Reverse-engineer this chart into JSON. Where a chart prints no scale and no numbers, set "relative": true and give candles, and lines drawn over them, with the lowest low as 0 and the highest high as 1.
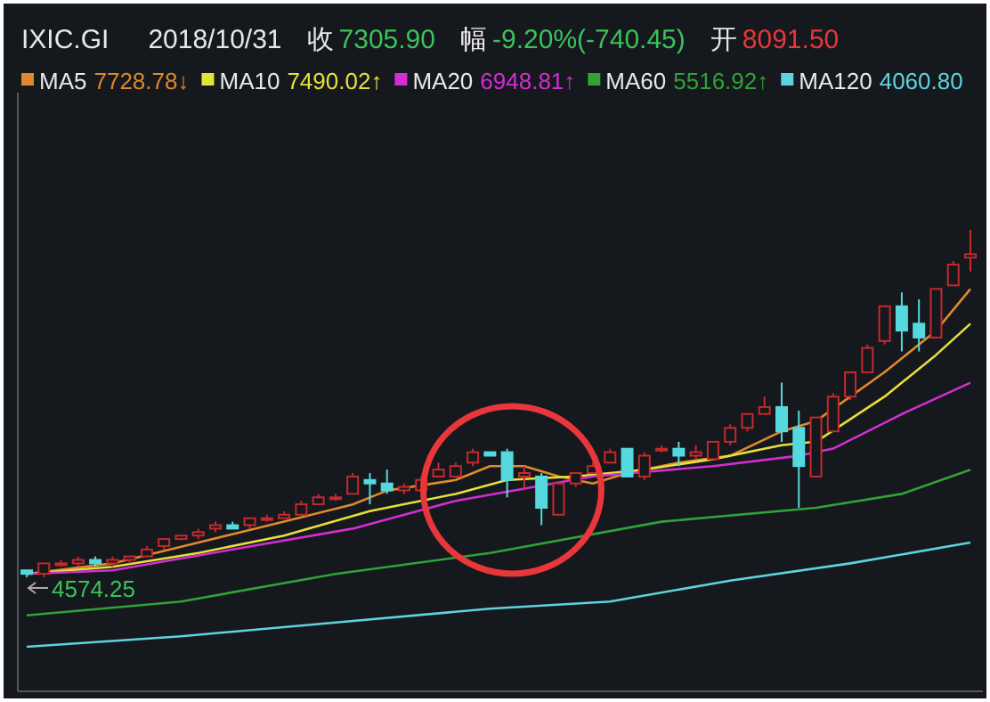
{
  "chart_data": {
    "type": "candlestick",
    "title": "IXIC.GI",
    "subtitle": "2018/10/31",
    "relative": true,
    "legend": "top left",
    "categories": [
      null,
      null,
      null,
      null,
      null,
      null,
      null,
      null,
      null,
      null,
      null,
      null,
      null,
      null,
      null,
      null,
      null,
      null,
      null,
      null,
      null,
      null,
      null,
      null,
      null,
      null,
      null,
      null,
      null,
      null,
      null,
      null,
      null,
      null,
      null,
      null,
      null,
      null,
      null,
      null,
      null,
      null,
      null,
      null,
      null,
      null,
      null,
      null,
      null,
      null,
      null,
      null,
      null,
      null,
      null,
      null
    ],
    "ohlc": [
      [
        0.02,
        0.02,
        0,
        0.01
      ],
      [
        0.01,
        0.04,
        0,
        0.04
      ],
      [
        0.04,
        0.05,
        0.03,
        0.04
      ],
      [
        0.04,
        0.06,
        0.03,
        0.05
      ],
      [
        0.05,
        0.06,
        0.03,
        0.04
      ],
      [
        0.04,
        0.06,
        0.03,
        0.05
      ],
      [
        0.05,
        0.06,
        0.04,
        0.06
      ],
      [
        0.06,
        0.09,
        0.06,
        0.08
      ],
      [
        0.09,
        0.11,
        0.08,
        0.11
      ],
      [
        0.11,
        0.12,
        0.11,
        0.12
      ],
      [
        0.12,
        0.14,
        0.11,
        0.13
      ],
      [
        0.14,
        0.16,
        0.13,
        0.15
      ],
      [
        0.15,
        0.16,
        0.14,
        0.14
      ],
      [
        0.15,
        0.17,
        0.14,
        0.17
      ],
      [
        0.17,
        0.18,
        0.16,
        0.17
      ],
      [
        0.17,
        0.19,
        0.17,
        0.18
      ],
      [
        0.18,
        0.22,
        0.18,
        0.21
      ],
      [
        0.21,
        0.24,
        0.21,
        0.23
      ],
      [
        0.23,
        0.24,
        0.22,
        0.23
      ],
      [
        0.24,
        0.3,
        0.24,
        0.29
      ],
      [
        0.28,
        0.3,
        0.21,
        0.27
      ],
      [
        0.27,
        0.31,
        0.24,
        0.25
      ],
      [
        0.25,
        0.27,
        0.24,
        0.26
      ],
      [
        0.25,
        0.29,
        0.25,
        0.28
      ],
      [
        0.29,
        0.33,
        0.29,
        0.31
      ],
      [
        0.29,
        0.33,
        0.29,
        0.32
      ],
      [
        0.33,
        0.37,
        0.32,
        0.36
      ],
      [
        0.36,
        0.36,
        0.35,
        0.35
      ],
      [
        0.36,
        0.37,
        0.23,
        0.28
      ],
      [
        0.29,
        0.32,
        0.25,
        0.3
      ],
      [
        0.29,
        0.3,
        0.15,
        0.2
      ],
      [
        0.18,
        0.27,
        0.18,
        0.27
      ],
      [
        0.27,
        0.3,
        0.26,
        0.3
      ],
      [
        0.3,
        0.33,
        0.3,
        0.32
      ],
      [
        0.33,
        0.37,
        0.33,
        0.36
      ],
      [
        0.37,
        0.37,
        0.29,
        0.29
      ],
      [
        0.29,
        0.36,
        0.28,
        0.35
      ],
      [
        0.37,
        0.38,
        0.36,
        0.37
      ],
      [
        0.37,
        0.39,
        0.32,
        0.35
      ],
      [
        0.35,
        0.38,
        0.34,
        0.36
      ],
      [
        0.34,
        0.39,
        0.34,
        0.39
      ],
      [
        0.39,
        0.44,
        0.38,
        0.43
      ],
      [
        0.43,
        0.47,
        0.42,
        0.47
      ],
      [
        0.47,
        0.52,
        0.47,
        0.49
      ],
      [
        0.49,
        0.56,
        0.39,
        0.42
      ],
      [
        0.43,
        0.48,
        0.2,
        0.32
      ],
      [
        0.29,
        0.46,
        0.29,
        0.46
      ],
      [
        0.42,
        0.53,
        0.42,
        0.52
      ],
      [
        0.52,
        0.59,
        0.51,
        0.59
      ],
      [
        0.59,
        0.67,
        0.59,
        0.66
      ],
      [
        0.68,
        0.78,
        0.67,
        0.78
      ],
      [
        0.78,
        0.82,
        0.65,
        0.71
      ],
      [
        0.73,
        0.8,
        0.65,
        0.69
      ],
      [
        0.69,
        0.83,
        0.69,
        0.83
      ],
      [
        0.84,
        0.91,
        0.84,
        0.9
      ],
      [
        0.92,
        1.0,
        0.88,
        0.93
      ]
    ],
    "series": [
      {
        "name": "MA5",
        "type": "line",
        "color": "#e0892c",
        "values": [
          0.01,
          null,
          null,
          null,
          null,
          0.04,
          null,
          null,
          null,
          null,
          0.1,
          null,
          null,
          null,
          null,
          0.16,
          null,
          null,
          null,
          0.21,
          null,
          0.25,
          null,
          null,
          null,
          0.28,
          null,
          0.32,
          null,
          0.32,
          null,
          0.29,
          null,
          0.27,
          null,
          0.3,
          null,
          null,
          0.33,
          null,
          null,
          0.35,
          null,
          null,
          0.42,
          null,
          0.45,
          null,
          null,
          null,
          0.59,
          null,
          null,
          0.71,
          null,
          0.83
        ]
      },
      {
        "name": "MA10",
        "type": "line",
        "color": "#e6e03a",
        "values": [
          0.01,
          null,
          null,
          null,
          null,
          0.03,
          null,
          null,
          null,
          null,
          0.07,
          null,
          null,
          null,
          null,
          0.12,
          null,
          null,
          null,
          null,
          0.19,
          null,
          null,
          null,
          null,
          0.24,
          null,
          null,
          0.28,
          null,
          null,
          null,
          0.29,
          null,
          null,
          null,
          0.31,
          null,
          null,
          null,
          0.34,
          null,
          null,
          null,
          0.38,
          null,
          0.39,
          null,
          null,
          null,
          0.52,
          null,
          null,
          0.64,
          null,
          0.73
        ]
      },
      {
        "name": "MA20",
        "type": "line",
        "color": "#d22ed2",
        "values": [
          0.01,
          null,
          null,
          null,
          null,
          0.02,
          null,
          null,
          null,
          null,
          null,
          null,
          0.08,
          null,
          null,
          null,
          null,
          null,
          null,
          0.14,
          null,
          null,
          null,
          null,
          null,
          0.22,
          null,
          null,
          null,
          null,
          null,
          null,
          null,
          0.29,
          null,
          null,
          null,
          null,
          null,
          null,
          0.32,
          null,
          null,
          null,
          null,
          0.35,
          null,
          0.37,
          null,
          null,
          null,
          0.47,
          null,
          null,
          null,
          0.56
        ]
      },
      {
        "name": "MA60",
        "type": "line",
        "color": "#2fa23a",
        "values": [
          -0.11,
          null,
          null,
          null,
          null,
          null,
          null,
          null,
          null,
          -0.07,
          null,
          null,
          null,
          null,
          null,
          null,
          null,
          null,
          0.01,
          null,
          null,
          null,
          null,
          null,
          null,
          null,
          null,
          0.07,
          null,
          null,
          null,
          null,
          null,
          null,
          null,
          null,
          null,
          0.16,
          null,
          null,
          null,
          null,
          null,
          null,
          null,
          null,
          0.2,
          null,
          null,
          null,
          null,
          0.24,
          null,
          null,
          null,
          0.31
        ]
      },
      {
        "name": "MA120",
        "type": "line",
        "color": "#5fd3dd",
        "values": [
          -0.2,
          null,
          null,
          null,
          null,
          null,
          null,
          null,
          null,
          -0.17,
          null,
          null,
          null,
          null,
          null,
          null,
          null,
          null,
          -0.13,
          null,
          null,
          null,
          null,
          null,
          null,
          null,
          null,
          -0.09,
          null,
          null,
          null,
          null,
          null,
          null,
          -0.07,
          null,
          null,
          null,
          null,
          null,
          null,
          -0.01,
          null,
          null,
          null,
          null,
          null,
          null,
          0.04,
          null,
          null,
          null,
          null,
          null,
          null,
          0.1
        ]
      }
    ],
    "annotations": [
      "收",
      "7305.90",
      "幅",
      "-9.20%(-740.45)",
      "开",
      "8091.50",
      {
        "text": "4574.25",
        "y": 0
      },
      "7728.78↓",
      "7490.02↑",
      "6948.81↑",
      "5516.92↑",
      "4060.80"
    ]
  }
}
